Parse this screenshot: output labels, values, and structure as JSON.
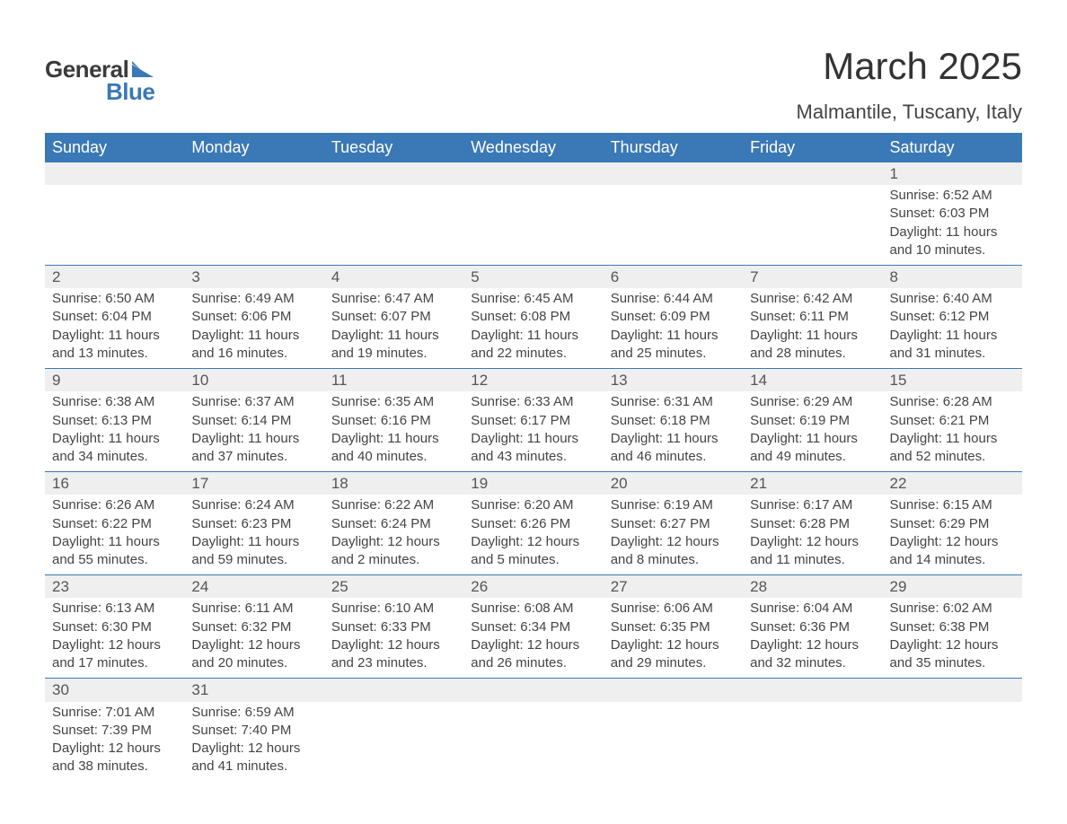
{
  "logo": {
    "text1": "General",
    "text2": "Blue",
    "text1_color": "#3b3b3b",
    "text2_color": "#3a78b6",
    "shape_color": "#3a78b6"
  },
  "title": "March 2025",
  "location": "Malmantile, Tuscany, Italy",
  "colors": {
    "header_bg": "#3a78b6",
    "header_text": "#ffffff",
    "daynum_bg": "#efefef",
    "border": "#3a78b6",
    "body_text": "#444444",
    "page_bg": "#ffffff"
  },
  "fonts": {
    "title_size_pt": 32,
    "location_size_pt": 17,
    "header_size_pt": 14,
    "daynum_size_pt": 13,
    "body_size_pt": 11
  },
  "day_headers": [
    "Sunday",
    "Monday",
    "Tuesday",
    "Wednesday",
    "Thursday",
    "Friday",
    "Saturday"
  ],
  "weeks": [
    [
      null,
      null,
      null,
      null,
      null,
      null,
      {
        "n": "1",
        "sunrise": "6:52 AM",
        "sunset": "6:03 PM",
        "daylight": "11 hours and 10 minutes."
      }
    ],
    [
      {
        "n": "2",
        "sunrise": "6:50 AM",
        "sunset": "6:04 PM",
        "daylight": "11 hours and 13 minutes."
      },
      {
        "n": "3",
        "sunrise": "6:49 AM",
        "sunset": "6:06 PM",
        "daylight": "11 hours and 16 minutes."
      },
      {
        "n": "4",
        "sunrise": "6:47 AM",
        "sunset": "6:07 PM",
        "daylight": "11 hours and 19 minutes."
      },
      {
        "n": "5",
        "sunrise": "6:45 AM",
        "sunset": "6:08 PM",
        "daylight": "11 hours and 22 minutes."
      },
      {
        "n": "6",
        "sunrise": "6:44 AM",
        "sunset": "6:09 PM",
        "daylight": "11 hours and 25 minutes."
      },
      {
        "n": "7",
        "sunrise": "6:42 AM",
        "sunset": "6:11 PM",
        "daylight": "11 hours and 28 minutes."
      },
      {
        "n": "8",
        "sunrise": "6:40 AM",
        "sunset": "6:12 PM",
        "daylight": "11 hours and 31 minutes."
      }
    ],
    [
      {
        "n": "9",
        "sunrise": "6:38 AM",
        "sunset": "6:13 PM",
        "daylight": "11 hours and 34 minutes."
      },
      {
        "n": "10",
        "sunrise": "6:37 AM",
        "sunset": "6:14 PM",
        "daylight": "11 hours and 37 minutes."
      },
      {
        "n": "11",
        "sunrise": "6:35 AM",
        "sunset": "6:16 PM",
        "daylight": "11 hours and 40 minutes."
      },
      {
        "n": "12",
        "sunrise": "6:33 AM",
        "sunset": "6:17 PM",
        "daylight": "11 hours and 43 minutes."
      },
      {
        "n": "13",
        "sunrise": "6:31 AM",
        "sunset": "6:18 PM",
        "daylight": "11 hours and 46 minutes."
      },
      {
        "n": "14",
        "sunrise": "6:29 AM",
        "sunset": "6:19 PM",
        "daylight": "11 hours and 49 minutes."
      },
      {
        "n": "15",
        "sunrise": "6:28 AM",
        "sunset": "6:21 PM",
        "daylight": "11 hours and 52 minutes."
      }
    ],
    [
      {
        "n": "16",
        "sunrise": "6:26 AM",
        "sunset": "6:22 PM",
        "daylight": "11 hours and 55 minutes."
      },
      {
        "n": "17",
        "sunrise": "6:24 AM",
        "sunset": "6:23 PM",
        "daylight": "11 hours and 59 minutes."
      },
      {
        "n": "18",
        "sunrise": "6:22 AM",
        "sunset": "6:24 PM",
        "daylight": "12 hours and 2 minutes."
      },
      {
        "n": "19",
        "sunrise": "6:20 AM",
        "sunset": "6:26 PM",
        "daylight": "12 hours and 5 minutes."
      },
      {
        "n": "20",
        "sunrise": "6:19 AM",
        "sunset": "6:27 PM",
        "daylight": "12 hours and 8 minutes."
      },
      {
        "n": "21",
        "sunrise": "6:17 AM",
        "sunset": "6:28 PM",
        "daylight": "12 hours and 11 minutes."
      },
      {
        "n": "22",
        "sunrise": "6:15 AM",
        "sunset": "6:29 PM",
        "daylight": "12 hours and 14 minutes."
      }
    ],
    [
      {
        "n": "23",
        "sunrise": "6:13 AM",
        "sunset": "6:30 PM",
        "daylight": "12 hours and 17 minutes."
      },
      {
        "n": "24",
        "sunrise": "6:11 AM",
        "sunset": "6:32 PM",
        "daylight": "12 hours and 20 minutes."
      },
      {
        "n": "25",
        "sunrise": "6:10 AM",
        "sunset": "6:33 PM",
        "daylight": "12 hours and 23 minutes."
      },
      {
        "n": "26",
        "sunrise": "6:08 AM",
        "sunset": "6:34 PM",
        "daylight": "12 hours and 26 minutes."
      },
      {
        "n": "27",
        "sunrise": "6:06 AM",
        "sunset": "6:35 PM",
        "daylight": "12 hours and 29 minutes."
      },
      {
        "n": "28",
        "sunrise": "6:04 AM",
        "sunset": "6:36 PM",
        "daylight": "12 hours and 32 minutes."
      },
      {
        "n": "29",
        "sunrise": "6:02 AM",
        "sunset": "6:38 PM",
        "daylight": "12 hours and 35 minutes."
      }
    ],
    [
      {
        "n": "30",
        "sunrise": "7:01 AM",
        "sunset": "7:39 PM",
        "daylight": "12 hours and 38 minutes."
      },
      {
        "n": "31",
        "sunrise": "6:59 AM",
        "sunset": "7:40 PM",
        "daylight": "12 hours and 41 minutes."
      },
      null,
      null,
      null,
      null,
      null
    ]
  ],
  "labels": {
    "sunrise": "Sunrise:",
    "sunset": "Sunset:",
    "daylight": "Daylight:"
  }
}
